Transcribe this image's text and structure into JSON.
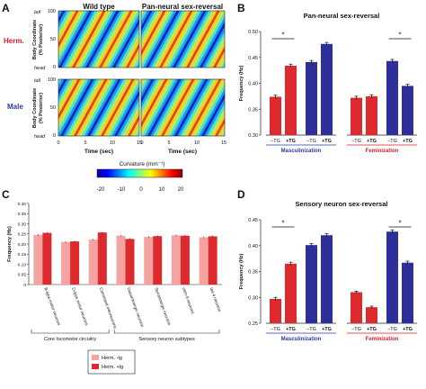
{
  "panels": {
    "A": {
      "letter": "A",
      "col_titles": [
        "Wild type",
        "Pan-neural sex-reversal"
      ],
      "row_labels": [
        {
          "label": "Herm.",
          "color": "#d81e2c"
        },
        {
          "label": "Male",
          "color": "#2b3aa0"
        }
      ],
      "ylabel_lines": [
        "Body Coordinate",
        "(% Posterior)"
      ],
      "ytick_values": [
        0,
        50,
        100
      ],
      "y_end_labels": {
        "top": "tail",
        "bottom": "head"
      },
      "xticks": [
        0,
        5,
        10,
        15
      ],
      "xlabel": "Time (sec)",
      "colorbar": {
        "title": "Curvature (mm⁻¹)",
        "ticks": [
          -20,
          -10,
          0,
          10,
          20
        ],
        "range": [
          -20,
          20
        ]
      }
    },
    "B": {
      "letter": "B"
    },
    "C": {
      "letter": "C"
    },
    "D": {
      "letter": "D"
    }
  },
  "colors": {
    "herm_light": "#f4a3a0",
    "herm_red": "#dd2a2e",
    "male_blue": "#2d2f9a",
    "male_blue_alt": "#3438a8",
    "axis": "#222222",
    "masc_label": "#2b3aa0",
    "fem_label": "#d81e2c"
  },
  "chart_data": [
    {
      "panel": "B",
      "type": "bar",
      "title": "Pan-neural sex-reversal",
      "ylabel": "Frequency (Hz)",
      "ylim": [
        0.3,
        0.5
      ],
      "yticks": [
        0.3,
        0.35,
        0.4,
        0.45,
        0.5
      ],
      "groups": [
        {
          "name": "Masculinization",
          "bars": [
            {
              "label": "−TG",
              "value": 0.374,
              "err": 0.003,
              "color": "red"
            },
            {
              "label": "+TG",
              "value": 0.434,
              "err": 0.003,
              "color": "red"
            },
            {
              "label": "−TG",
              "value": 0.441,
              "err": 0.003,
              "color": "blue"
            },
            {
              "label": "+TG",
              "value": 0.476,
              "err": 0.003,
              "color": "blue"
            }
          ],
          "sig": "*"
        },
        {
          "name": "Feminization",
          "bars": [
            {
              "label": "−TG",
              "value": 0.372,
              "err": 0.003,
              "color": "red"
            },
            {
              "label": "+TG",
              "value": 0.375,
              "err": 0.003,
              "color": "red"
            },
            {
              "label": "−TG",
              "value": 0.443,
              "err": 0.003,
              "color": "blue"
            },
            {
              "label": "+TG",
              "value": 0.395,
              "err": 0.003,
              "color": "blue"
            }
          ],
          "sig": "*"
        }
      ]
    },
    {
      "panel": "C",
      "type": "bar",
      "ylabel": "Frequency (Hz)",
      "ylim": [
        0,
        0.4
      ],
      "yticks": [
        0,
        0.05,
        0.1,
        0.15,
        0.2,
        0.25,
        0.3,
        0.35,
        0.4
      ],
      "categories": [
        "B-type motor neurons",
        "D-type motor neurons",
        "Command interneurons",
        "Dopaminergic neurons",
        "Serotonergic neurons",
        "osm-9 neurons",
        "tax-4 neurons"
      ],
      "series": [
        {
          "name": "Herm. -tg",
          "values": [
            0.245,
            0.21,
            0.222,
            0.241,
            0.235,
            0.243,
            0.233
          ]
        },
        {
          "name": "Herm. +tg",
          "values": [
            0.255,
            0.213,
            0.257,
            0.225,
            0.239,
            0.241,
            0.238
          ]
        }
      ],
      "group_labels": [
        {
          "label": "Core locomotor circuitry",
          "span": [
            0,
            2
          ]
        },
        {
          "label": "Sensory neuron subtypes",
          "span": [
            3,
            6
          ]
        }
      ],
      "legend": "bottom"
    },
    {
      "panel": "D",
      "type": "bar",
      "title": "Sensory neuron sex-reversal",
      "ylabel": "Frequency (Hz)",
      "ylim": [
        0.25,
        0.45
      ],
      "yticks": [
        0.25,
        0.3,
        0.35,
        0.4,
        0.45
      ],
      "groups": [
        {
          "name": "Masculinization",
          "bars": [
            {
              "label": "−TG",
              "value": 0.297,
              "err": 0.003,
              "color": "red"
            },
            {
              "label": "+TG",
              "value": 0.365,
              "err": 0.003,
              "color": "red"
            },
            {
              "label": "−TG",
              "value": 0.401,
              "err": 0.003,
              "color": "blue"
            },
            {
              "label": "+TG",
              "value": 0.42,
              "err": 0.003,
              "color": "blue"
            }
          ],
          "sig": "*"
        },
        {
          "name": "Feminization",
          "bars": [
            {
              "label": "−TG",
              "value": 0.31,
              "err": 0.002,
              "color": "red"
            },
            {
              "label": "+TG",
              "value": 0.281,
              "err": 0.002,
              "color": "red"
            },
            {
              "label": "−TG",
              "value": 0.427,
              "err": 0.003,
              "color": "blue"
            },
            {
              "label": "+TG",
              "value": 0.367,
              "err": 0.003,
              "color": "blue"
            }
          ],
          "sig": "*"
        }
      ]
    }
  ]
}
